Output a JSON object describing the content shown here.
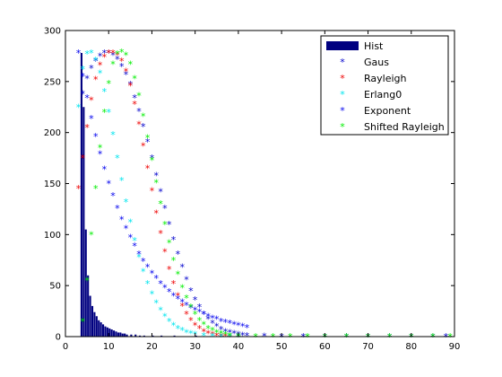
{
  "chart_data": {
    "type": "scatter",
    "xlim": [
      0,
      90
    ],
    "ylim": [
      0,
      300
    ],
    "x_ticks": [
      "0",
      "10",
      "20",
      "30",
      "40",
      "50",
      "60",
      "70",
      "80",
      "90"
    ],
    "y_ticks": [
      "0",
      "50",
      "100",
      "150",
      "200",
      "250",
      "300"
    ],
    "grid": false,
    "legend_position": "top-right",
    "histogram": {
      "name": "Hist",
      "color": "#000080",
      "bin_width": 0.5,
      "bins": [
        [
          3.5,
          278
        ],
        [
          4.0,
          225
        ],
        [
          4.5,
          105
        ],
        [
          5.0,
          60
        ],
        [
          5.5,
          40
        ],
        [
          6.0,
          30
        ],
        [
          6.5,
          24
        ],
        [
          7.0,
          20
        ],
        [
          7.5,
          16
        ],
        [
          8.0,
          14
        ],
        [
          8.5,
          12
        ],
        [
          9.0,
          10
        ],
        [
          9.5,
          9
        ],
        [
          10.0,
          8
        ],
        [
          10.5,
          7
        ],
        [
          11.0,
          6
        ],
        [
          11.5,
          5
        ],
        [
          12.0,
          4
        ],
        [
          12.5,
          4
        ],
        [
          13.0,
          3
        ],
        [
          13.5,
          3
        ],
        [
          14.0,
          2
        ],
        [
          15.0,
          2
        ],
        [
          16.0,
          2
        ],
        [
          17.0,
          1
        ],
        [
          18.0,
          1
        ],
        [
          20.0,
          1
        ],
        [
          22.0,
          1
        ],
        [
          25.0,
          1
        ],
        [
          30.0,
          1
        ]
      ]
    },
    "series": [
      {
        "name": "Gaus",
        "color": "#0000cc",
        "marker": "*",
        "points": [
          [
            4,
            238
          ],
          [
            5,
            253
          ],
          [
            6,
            263
          ],
          [
            7,
            270
          ],
          [
            8,
            275
          ],
          [
            9,
            278
          ],
          [
            10,
            278
          ],
          [
            11,
            276
          ],
          [
            12,
            272
          ],
          [
            13,
            265
          ],
          [
            14,
            257
          ],
          [
            15,
            247
          ],
          [
            16,
            234
          ],
          [
            17,
            221
          ],
          [
            18,
            206
          ],
          [
            19,
            191
          ],
          [
            20,
            175
          ],
          [
            21,
            158
          ],
          [
            22,
            142
          ],
          [
            23,
            126
          ],
          [
            24,
            110
          ],
          [
            25,
            95
          ],
          [
            26,
            81
          ],
          [
            27,
            68
          ],
          [
            28,
            56
          ],
          [
            29,
            45
          ],
          [
            30,
            36
          ],
          [
            31,
            29
          ],
          [
            32,
            22
          ],
          [
            33,
            17
          ],
          [
            34,
            13
          ],
          [
            35,
            10
          ],
          [
            36,
            7
          ],
          [
            37,
            5
          ],
          [
            38,
            4
          ],
          [
            39,
            3
          ],
          [
            40,
            2
          ],
          [
            41,
            1.5
          ],
          [
            42,
            1
          ],
          [
            46,
            0.5
          ],
          [
            50,
            0
          ],
          [
            55,
            0
          ],
          [
            60,
            0
          ],
          [
            65,
            0
          ],
          [
            70,
            0
          ],
          [
            75,
            0
          ],
          [
            80,
            0
          ],
          [
            85,
            0
          ],
          [
            88,
            0
          ]
        ]
      },
      {
        "name": "Rayleigh",
        "color": "#ee0000",
        "marker": "*",
        "points": [
          [
            3,
            145
          ],
          [
            4,
            175
          ],
          [
            5,
            205
          ],
          [
            6,
            232
          ],
          [
            7,
            252
          ],
          [
            8,
            266
          ],
          [
            9,
            274
          ],
          [
            10,
            278
          ],
          [
            11,
            278
          ],
          [
            12,
            276
          ],
          [
            13,
            270
          ],
          [
            14,
            260
          ],
          [
            15,
            246
          ],
          [
            16,
            228
          ],
          [
            17,
            208
          ],
          [
            18,
            187
          ],
          [
            19,
            165
          ],
          [
            20,
            143
          ],
          [
            21,
            121
          ],
          [
            22,
            101
          ],
          [
            23,
            83
          ],
          [
            24,
            66
          ],
          [
            25,
            52
          ],
          [
            26,
            40
          ],
          [
            27,
            30
          ],
          [
            28,
            22
          ],
          [
            29,
            16
          ],
          [
            30,
            11
          ],
          [
            31,
            8
          ],
          [
            32,
            5
          ],
          [
            33,
            3
          ],
          [
            34,
            2
          ],
          [
            35,
            1
          ],
          [
            36,
            0.6
          ],
          [
            37,
            0.3
          ],
          [
            38,
            0
          ],
          [
            40,
            0
          ]
        ]
      },
      {
        "name": "Erlang0",
        "color": "#00e5ee",
        "marker": "*",
        "points": [
          [
            3,
            225
          ],
          [
            4,
            262
          ],
          [
            5,
            277
          ],
          [
            6,
            278
          ],
          [
            7,
            271
          ],
          [
            8,
            258
          ],
          [
            9,
            240
          ],
          [
            10,
            220
          ],
          [
            11,
            198
          ],
          [
            12,
            175
          ],
          [
            13,
            153
          ],
          [
            14,
            132
          ],
          [
            15,
            112
          ],
          [
            16,
            94
          ],
          [
            17,
            78
          ],
          [
            18,
            64
          ],
          [
            19,
            52
          ],
          [
            20,
            42
          ],
          [
            21,
            33
          ],
          [
            22,
            26
          ],
          [
            23,
            20
          ],
          [
            24,
            15
          ],
          [
            25,
            11
          ],
          [
            26,
            8
          ],
          [
            27,
            6
          ],
          [
            28,
            4
          ],
          [
            29,
            3
          ],
          [
            30,
            2
          ],
          [
            32,
            1
          ],
          [
            34,
            0.5
          ],
          [
            36,
            0
          ],
          [
            38,
            0
          ],
          [
            40,
            0
          ]
        ]
      },
      {
        "name": "Exponent",
        "color": "#0000ee",
        "marker": "*",
        "points": [
          [
            3,
            278
          ],
          [
            4,
            255
          ],
          [
            5,
            234
          ],
          [
            6,
            214
          ],
          [
            7,
            196
          ],
          [
            8,
            179
          ],
          [
            9,
            164
          ],
          [
            10,
            150
          ],
          [
            11,
            138
          ],
          [
            12,
            126
          ],
          [
            13,
            115
          ],
          [
            14,
            106
          ],
          [
            15,
            97
          ],
          [
            16,
            89
          ],
          [
            17,
            81
          ],
          [
            18,
            74
          ],
          [
            19,
            68
          ],
          [
            20,
            62
          ],
          [
            21,
            57
          ],
          [
            22,
            52
          ],
          [
            23,
            48
          ],
          [
            24,
            44
          ],
          [
            25,
            40
          ],
          [
            26,
            37
          ],
          [
            27,
            34
          ],
          [
            28,
            31
          ],
          [
            29,
            28
          ],
          [
            30,
            26
          ],
          [
            31,
            24
          ],
          [
            32,
            22
          ],
          [
            33,
            20
          ],
          [
            34,
            18
          ],
          [
            35,
            17
          ],
          [
            36,
            15
          ],
          [
            37,
            14
          ],
          [
            38,
            13
          ],
          [
            39,
            12
          ],
          [
            40,
            11
          ],
          [
            41,
            10
          ],
          [
            42,
            9
          ]
        ]
      },
      {
        "name": "Shifted Rayleigh",
        "color": "#00ee00",
        "marker": "*",
        "points": [
          [
            4,
            15
          ],
          [
            5,
            55
          ],
          [
            6,
            100
          ],
          [
            7,
            145
          ],
          [
            8,
            185
          ],
          [
            9,
            220
          ],
          [
            10,
            248
          ],
          [
            11,
            267
          ],
          [
            12,
            277
          ],
          [
            13,
            279
          ],
          [
            14,
            276
          ],
          [
            15,
            267
          ],
          [
            16,
            253
          ],
          [
            17,
            236
          ],
          [
            18,
            216
          ],
          [
            19,
            195
          ],
          [
            20,
            173
          ],
          [
            21,
            151
          ],
          [
            22,
            130
          ],
          [
            23,
            110
          ],
          [
            24,
            92
          ],
          [
            25,
            75
          ],
          [
            26,
            61
          ],
          [
            27,
            48
          ],
          [
            28,
            38
          ],
          [
            29,
            29
          ],
          [
            30,
            22
          ],
          [
            31,
            16
          ],
          [
            32,
            12
          ],
          [
            33,
            8
          ],
          [
            34,
            6
          ],
          [
            35,
            4
          ],
          [
            36,
            3
          ],
          [
            37,
            2
          ],
          [
            38,
            1
          ],
          [
            40,
            0.5
          ],
          [
            44,
            0
          ],
          [
            48,
            0
          ],
          [
            52,
            0
          ],
          [
            56,
            0
          ],
          [
            60,
            0
          ],
          [
            65,
            0
          ],
          [
            70,
            0
          ],
          [
            75,
            0
          ],
          [
            80,
            0
          ],
          [
            85,
            0
          ],
          [
            89,
            0
          ]
        ]
      }
    ]
  }
}
